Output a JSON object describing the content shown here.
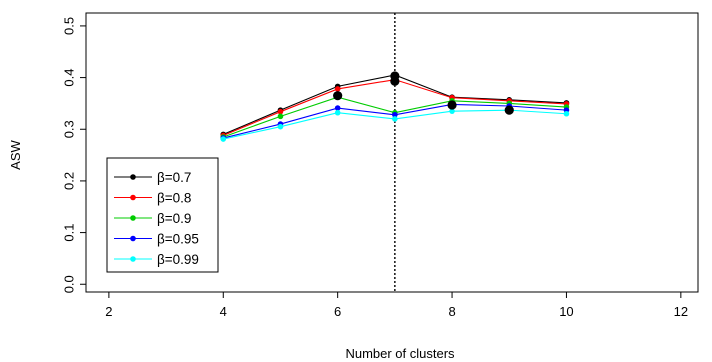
{
  "chart_data": {
    "type": "line",
    "title": "",
    "xlabel": "Number of clusters",
    "ylabel": "ASW",
    "xlim": [
      1.6,
      12.3
    ],
    "ylim": [
      -0.015,
      0.525
    ],
    "xticks": [
      "2",
      "4",
      "6",
      "8",
      "10",
      "12"
    ],
    "yticks": [
      "0.0",
      "0.1",
      "0.2",
      "0.3",
      "0.4",
      "0.5"
    ],
    "x": [
      4,
      5,
      6,
      7,
      8,
      9,
      10
    ],
    "reference_line": {
      "x": 7,
      "style": "dotted"
    },
    "highlight": [
      {
        "x": 6,
        "y": 0.365
      },
      {
        "x": 7,
        "y": 0.403
      },
      {
        "x": 7,
        "y": 0.393
      },
      {
        "x": 8,
        "y": 0.347
      },
      {
        "x": 9,
        "y": 0.337
      }
    ],
    "legend_position": "bottom-left",
    "series": [
      {
        "name": "β=0.7",
        "color": "#000000",
        "values": [
          0.29,
          0.337,
          0.383,
          0.405,
          0.362,
          0.357,
          0.351
        ]
      },
      {
        "name": "β=0.8",
        "color": "#ff0000",
        "values": [
          0.288,
          0.334,
          0.378,
          0.396,
          0.361,
          0.355,
          0.349
        ]
      },
      {
        "name": "β=0.9",
        "color": "#00cc00",
        "values": [
          0.285,
          0.325,
          0.362,
          0.332,
          0.355,
          0.35,
          0.343
        ]
      },
      {
        "name": "β=0.95",
        "color": "#0000ff",
        "values": [
          0.283,
          0.31,
          0.341,
          0.328,
          0.348,
          0.345,
          0.337
        ]
      },
      {
        "name": "β=0.99",
        "color": "#00ffff",
        "values": [
          0.281,
          0.305,
          0.332,
          0.32,
          0.335,
          0.337,
          0.33
        ]
      }
    ]
  }
}
